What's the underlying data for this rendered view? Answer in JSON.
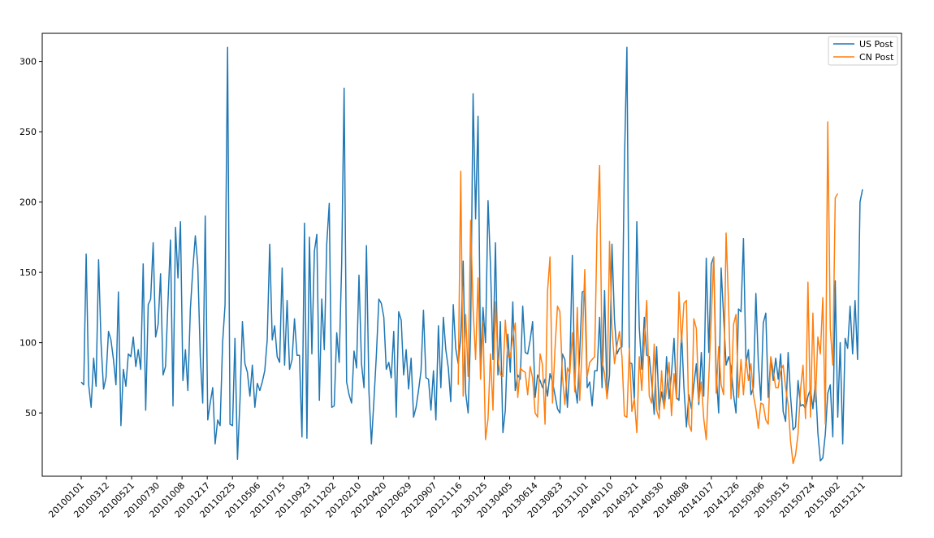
{
  "chart_data": {
    "type": "line",
    "title": "",
    "xlabel": "",
    "ylabel": "",
    "ylim": [
      5,
      320
    ],
    "yticks": [
      50,
      100,
      150,
      200,
      250,
      300
    ],
    "x_tick_labels": [
      "20100101",
      "20100312",
      "20100521",
      "20100730",
      "20101008",
      "20101217",
      "20110225",
      "20110506",
      "20110715",
      "20110923",
      "20111202",
      "20120210",
      "20120420",
      "20120629",
      "20120907",
      "20121116",
      "20130125",
      "20130405",
      "20130614",
      "20130823",
      "20131101",
      "20140110",
      "20140321",
      "20140530",
      "20140808",
      "20141017",
      "20141226",
      "20150306",
      "20150515",
      "20150724",
      "20151002",
      "20151211"
    ],
    "legend": {
      "position": "top-right",
      "entries": [
        "US Post",
        "CN Post"
      ]
    },
    "colors": {
      "US Post": "#1f77b4",
      "CN Post": "#ff7f0e"
    },
    "series": [
      {
        "name": "US Post",
        "start_index": 0,
        "values": [
          72,
          70,
          163,
          70,
          54,
          89,
          69,
          159,
          100,
          67,
          75,
          108,
          102,
          88,
          70,
          136,
          41,
          81,
          69,
          92,
          90,
          104,
          83,
          95,
          81,
          156,
          52,
          127,
          131,
          171,
          104,
          113,
          149,
          77,
          83,
          130,
          173,
          55,
          182,
          146,
          186,
          73,
          95,
          66,
          124,
          152,
          176,
          155,
          90,
          57,
          190,
          45,
          57,
          68,
          28,
          45,
          41,
          100,
          127,
          310,
          42,
          41,
          103,
          17,
          59,
          115,
          85,
          79,
          62,
          84,
          54,
          71,
          66,
          72,
          80,
          102,
          170,
          102,
          112,
          90,
          86,
          153,
          84,
          130,
          81,
          88,
          117,
          91,
          91,
          33,
          185,
          32,
          175,
          92,
          165,
          177,
          59,
          131,
          95,
          170,
          199,
          54,
          55,
          107,
          86,
          156,
          281,
          72,
          63,
          57,
          94,
          82,
          148,
          85,
          68,
          169,
          65,
          28,
          59,
          91,
          131,
          128,
          118,
          81,
          86,
          75,
          108,
          47,
          122,
          116,
          77,
          95,
          67,
          89,
          47,
          54,
          66,
          80,
          123,
          75,
          74,
          52,
          80,
          45,
          112,
          68,
          118,
          95,
          82,
          58,
          127,
          96,
          85,
          104,
          158,
          64,
          50,
          109,
          277,
          188,
          261,
          85,
          125,
          100,
          201,
          155,
          88,
          171,
          77,
          115,
          36,
          52,
          106,
          79,
          129,
          66,
          77,
          74,
          126,
          93,
          92,
          102,
          115,
          61,
          77,
          73,
          68,
          74,
          62,
          78,
          72,
          63,
          53,
          50,
          92,
          88,
          54,
          83,
          162,
          71,
          57,
          93,
          136,
          137,
          68,
          72,
          55,
          80,
          80,
          118,
          68,
          137,
          61,
          77,
          170,
          116,
          92,
          96,
          97,
          227,
          310,
          86,
          85,
          60,
          186,
          111,
          81,
          118,
          91,
          90,
          72,
          49,
          97,
          52,
          65,
          54,
          90,
          60,
          78,
          103,
          61,
          59,
          108,
          68,
          40,
          63,
          53,
          70,
          85,
          56,
          93,
          62,
          160,
          93,
          156,
          161,
          78,
          50,
          153,
          118,
          84,
          90,
          83,
          63,
          50,
          124,
          122,
          174,
          85,
          95,
          63,
          68,
          135,
          86,
          59,
          114,
          121,
          61,
          89,
          73,
          89,
          74,
          92,
          51,
          44,
          93,
          62,
          38,
          40,
          73,
          55,
          56,
          53,
          62,
          67,
          53,
          72,
          36,
          16,
          18,
          35,
          64,
          70,
          33,
          144,
          47,
          100,
          28,
          103,
          96,
          126,
          92,
          130,
          88,
          200,
          209
        ]
      },
      {
        "name": "CN Post",
        "start_index": 152,
        "values": [
          70,
          222,
          62,
          120,
          76,
          187,
          124,
          88,
          146,
          74,
          115,
          31,
          46,
          92,
          52,
          129,
          88,
          77,
          76,
          116,
          90,
          90,
          103,
          114,
          61,
          82,
          80,
          79,
          63,
          83,
          75,
          50,
          47,
          92,
          84,
          42,
          136,
          161,
          57,
          95,
          126,
          122,
          76,
          56,
          82,
          78,
          107,
          65,
          125,
          59,
          98,
          152,
          76,
          86,
          88,
          90,
          182,
          226,
          87,
          78,
          60,
          172,
          110,
          85,
          98,
          108,
          90,
          48,
          47,
          96,
          51,
          60,
          36,
          90,
          66,
          100,
          130,
          62,
          57,
          99,
          52,
          46,
          80,
          53,
          67,
          86,
          48,
          78,
          60,
          136,
          100,
          128,
          130,
          42,
          37,
          117,
          110,
          58,
          72,
          46,
          31,
          75,
          117,
          161,
          64,
          97,
          70,
          63,
          178,
          127,
          60,
          113,
          120,
          61,
          88,
          63,
          89,
          73,
          85,
          63,
          53,
          39,
          57,
          56,
          45,
          42,
          90,
          80,
          68,
          68,
          80,
          84,
          68,
          56,
          30,
          14,
          20,
          35,
          67,
          84,
          46,
          143,
          47,
          121,
          58,
          104,
          92,
          132,
          42,
          257,
          110,
          84,
          203,
          206
        ]
      }
    ]
  }
}
